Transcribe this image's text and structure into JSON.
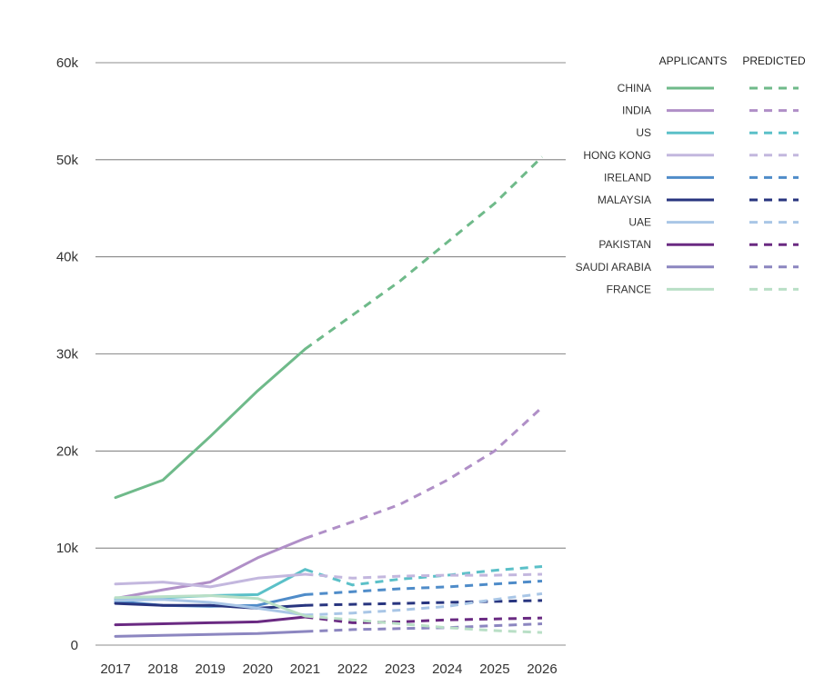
{
  "chart_data": {
    "type": "line",
    "title": "",
    "xlabel": "",
    "ylabel": "",
    "x": [
      2017,
      2018,
      2019,
      2020,
      2021,
      2022,
      2023,
      2024,
      2025,
      2026
    ],
    "x_labels": [
      "2017",
      "2018",
      "2019",
      "2020",
      "2021",
      "2022",
      "2023",
      "2024",
      "2025",
      "2026"
    ],
    "ylim": [
      0,
      60000
    ],
    "y_ticks": [
      0,
      10000,
      20000,
      30000,
      40000,
      50000,
      60000
    ],
    "y_tick_labels": [
      "0",
      "10k",
      "20k",
      "30k",
      "40k",
      "50k",
      "60k"
    ],
    "grid": true,
    "legend_position": "top-right",
    "legend_headers": {
      "actual": "APPLICANTS",
      "predicted": "PREDICTED"
    },
    "actual_range": [
      2017,
      2021
    ],
    "predicted_range": [
      2021,
      2026
    ],
    "series": [
      {
        "name": "CHINA",
        "color": "#6fba8a",
        "values": [
          15200,
          17000,
          21500,
          26200,
          30500,
          34000,
          37500,
          41500,
          45500,
          50300
        ]
      },
      {
        "name": "INDIA",
        "color": "#b08fc7",
        "values": [
          4800,
          5700,
          6500,
          9000,
          11000,
          12700,
          14500,
          17000,
          20000,
          24500
        ]
      },
      {
        "name": "US",
        "color": "#5bc0c8",
        "values": [
          4700,
          4900,
          5100,
          5200,
          7800,
          6200,
          6800,
          7200,
          7700,
          8100
        ]
      },
      {
        "name": "HONG KONG",
        "color": "#c3b7de",
        "values": [
          6300,
          6500,
          6000,
          6900,
          7300,
          6900,
          7100,
          7200,
          7200,
          7300
        ]
      },
      {
        "name": "IRELAND",
        "color": "#4f8cc9",
        "values": [
          4500,
          4100,
          4000,
          4100,
          5200,
          5500,
          5800,
          6000,
          6300,
          6600
        ]
      },
      {
        "name": "MALAYSIA",
        "color": "#28357f",
        "values": [
          4300,
          4100,
          4100,
          3800,
          4100,
          4200,
          4300,
          4400,
          4500,
          4600
        ]
      },
      {
        "name": "UAE",
        "color": "#a9c6e6",
        "values": [
          4600,
          4700,
          4400,
          3800,
          3100,
          3300,
          3600,
          4000,
          4700,
          5300
        ]
      },
      {
        "name": "PAKISTAN",
        "color": "#6a2a82",
        "values": [
          2100,
          2200,
          2300,
          2400,
          2900,
          2300,
          2400,
          2600,
          2700,
          2800
        ]
      },
      {
        "name": "SAUDI ARABIA",
        "color": "#8c86c0",
        "values": [
          900,
          1000,
          1100,
          1200,
          1400,
          1600,
          1700,
          1800,
          2000,
          2200
        ]
      },
      {
        "name": "FRANCE",
        "color": "#b9dfc6",
        "values": [
          4900,
          5000,
          5100,
          4800,
          3000,
          2600,
          2200,
          1800,
          1500,
          1300
        ]
      }
    ]
  }
}
